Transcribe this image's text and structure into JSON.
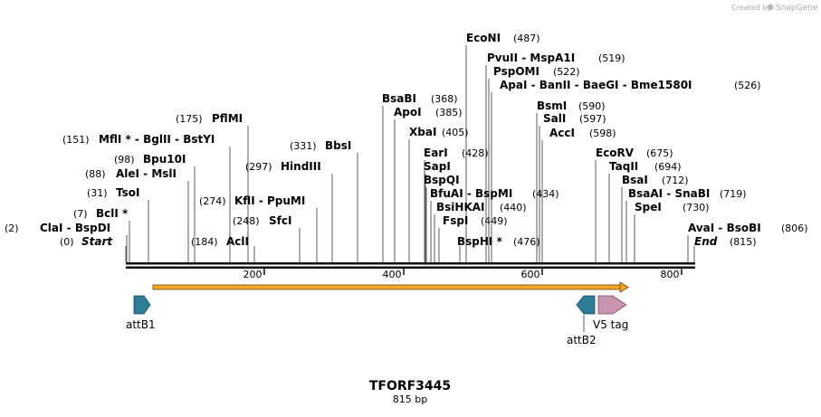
{
  "watermark": "Created by",
  "watermark_brand": "SnapGene",
  "title": "TFORF3445",
  "length_label": "815 bp",
  "ticks": [
    "200",
    "400",
    "600",
    "800"
  ],
  "sites": [
    {
      "name": "ClaI",
      "extra": "- BspDI",
      "pos": "(2)",
      "star": false,
      "italic": false
    },
    {
      "name": "Start",
      "extra": "",
      "pos": "(0)",
      "star": false,
      "italic": true
    },
    {
      "name": "BclI",
      "extra": "",
      "pos": "(7)",
      "star": true,
      "italic": false
    },
    {
      "name": "TsoI",
      "extra": "",
      "pos": "(31)",
      "star": false,
      "italic": false
    },
    {
      "name": "AleI",
      "extra": "- MslI",
      "pos": "(88)",
      "star": false,
      "italic": false
    },
    {
      "name": "Bpu10I",
      "extra": "",
      "pos": "(98)",
      "star": false,
      "italic": false
    },
    {
      "name": "MflI",
      "extra": "- BglII - BstYI",
      "pos": "(151)",
      "star": true,
      "italic": false
    },
    {
      "name": "PflMI",
      "extra": "",
      "pos": "(175)",
      "star": false,
      "italic": false
    },
    {
      "name": "AclI",
      "extra": "",
      "pos": "(184)",
      "star": false,
      "italic": false
    },
    {
      "name": "SfcI",
      "extra": "",
      "pos": "(248)",
      "star": false,
      "italic": false
    },
    {
      "name": "KflI",
      "extra": "- PpuMI",
      "pos": "(274)",
      "star": false,
      "italic": false
    },
    {
      "name": "HindIII",
      "extra": "",
      "pos": "(297)",
      "star": false,
      "italic": false
    },
    {
      "name": "BbsI",
      "extra": "",
      "pos": "(331)",
      "star": false,
      "italic": false
    },
    {
      "name": "BsaBI",
      "extra": "",
      "pos": "(368)",
      "star": false,
      "italic": false
    },
    {
      "name": "ApoI",
      "extra": "",
      "pos": "(385)",
      "star": false,
      "italic": false
    },
    {
      "name": "XbaI",
      "extra": "",
      "pos": "(405)",
      "star": false,
      "italic": false
    },
    {
      "name": "EarI",
      "extra": "",
      "pos": "(428)",
      "star": false,
      "italic": false
    },
    {
      "name": "SapI",
      "extra": "",
      "pos": "",
      "star": false,
      "italic": false
    },
    {
      "name": "BspQI",
      "extra": "",
      "pos": "",
      "star": false,
      "italic": false
    },
    {
      "name": "BfuAI",
      "extra": "- BspMI",
      "pos": "(434)",
      "star": false,
      "italic": false
    },
    {
      "name": "BsiHKAI",
      "extra": "",
      "pos": "(440)",
      "star": false,
      "italic": false
    },
    {
      "name": "FspI",
      "extra": "",
      "pos": "(449)",
      "star": false,
      "italic": false
    },
    {
      "name": "BspHI",
      "extra": "",
      "pos": "(476)",
      "star": true,
      "italic": false
    },
    {
      "name": "EcoNI",
      "extra": "",
      "pos": "(487)",
      "star": false,
      "italic": false
    },
    {
      "name": "PvuII",
      "extra": "- MspA1I",
      "pos": "(519)",
      "star": false,
      "italic": false
    },
    {
      "name": "PspOMI",
      "extra": "",
      "pos": "(522)",
      "star": false,
      "italic": false
    },
    {
      "name": "ApaI",
      "extra": "- BanII - BaeGI - Bme1580I",
      "pos": "(526)",
      "star": false,
      "italic": false
    },
    {
      "name": "BsmI",
      "extra": "",
      "pos": "(590)",
      "star": false,
      "italic": false
    },
    {
      "name": "SalI",
      "extra": "",
      "pos": "(597)",
      "star": false,
      "italic": false
    },
    {
      "name": "AccI",
      "extra": "",
      "pos": "(598)",
      "star": false,
      "italic": false
    },
    {
      "name": "EcoRV",
      "extra": "",
      "pos": "(675)",
      "star": false,
      "italic": false
    },
    {
      "name": "TaqII",
      "extra": "",
      "pos": "(694)",
      "star": false,
      "italic": false
    },
    {
      "name": "BsaI",
      "extra": "",
      "pos": "(712)",
      "star": false,
      "italic": false
    },
    {
      "name": "BsaAI",
      "extra": "- SnaBI",
      "pos": "(719)",
      "star": false,
      "italic": false
    },
    {
      "name": "SpeI",
      "extra": "",
      "pos": "(730)",
      "star": false,
      "italic": false
    },
    {
      "name": "AvaI",
      "extra": "- BsoBI",
      "pos": "(806)",
      "star": false,
      "italic": false
    },
    {
      "name": "End",
      "extra": "",
      "pos": "(815)",
      "star": false,
      "italic": true
    }
  ],
  "features": [
    {
      "name": "attB1",
      "color": "#2d7b95"
    },
    {
      "name": "attB2",
      "color": "#2d7b95"
    },
    {
      "name": "V5 tag",
      "color": "#c994b0"
    }
  ],
  "orf_color": "#f5a623"
}
